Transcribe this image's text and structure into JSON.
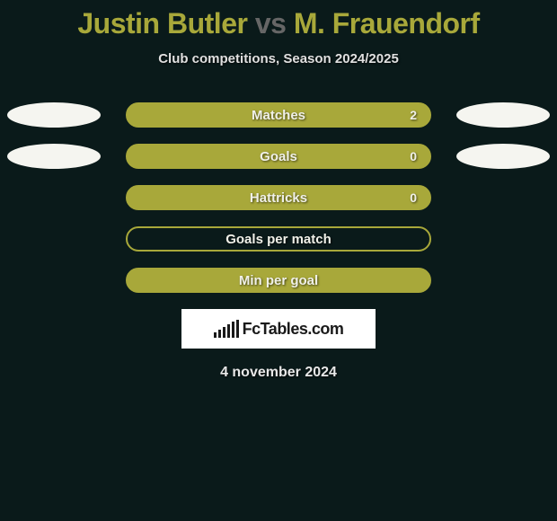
{
  "title": {
    "player1": "Justin Butler",
    "vs": "vs",
    "player2": "M. Frauendorf"
  },
  "subtitle": "Club competitions, Season 2024/2025",
  "stats": {
    "rows": [
      {
        "label": "Matches",
        "value": "2",
        "filled": true,
        "show_ellipses": true
      },
      {
        "label": "Goals",
        "value": "0",
        "filled": true,
        "show_ellipses": true
      },
      {
        "label": "Hattricks",
        "value": "0",
        "filled": true,
        "show_ellipses": false
      },
      {
        "label": "Goals per match",
        "value": "",
        "filled": false,
        "show_ellipses": false
      },
      {
        "label": "Min per goal",
        "value": "",
        "filled": true,
        "show_ellipses": false
      }
    ]
  },
  "logo": {
    "text": "FcTables.com"
  },
  "date": "4 november 2024",
  "colors": {
    "background": "#0a1a1a",
    "accent": "#a8a83a",
    "ellipse": "#f5f5f0",
    "text_light": "#e8e8e8",
    "logo_bg": "#ffffff",
    "logo_fg": "#1a1a1a"
  },
  "logo_bars_heights": [
    6,
    9,
    12,
    15,
    18,
    20
  ]
}
